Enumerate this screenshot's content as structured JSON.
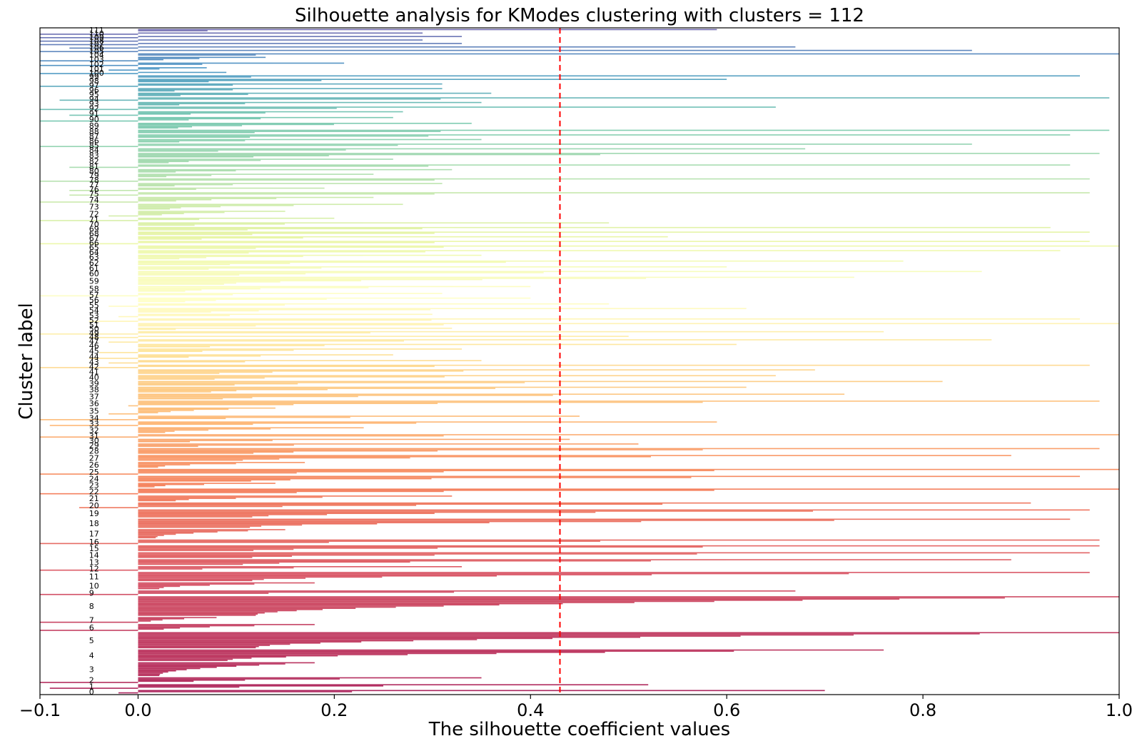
{
  "chart_data": {
    "type": "bar",
    "orientation": "horizontal",
    "title": "Silhouette analysis for KModes clustering with clusters = 112",
    "xlabel": "The silhouette coefficient values",
    "ylabel": "Cluster label",
    "xlim": [
      -0.1,
      1.0
    ],
    "xticks": [
      "−0.1",
      "0.0",
      "0.2",
      "0.4",
      "0.6",
      "0.8",
      "1.0"
    ],
    "yticks_shown": false,
    "grid": false,
    "legend": "none",
    "average_silhouette": 0.43,
    "average_line_color": "#ff0000",
    "colormap": "Spectral",
    "n_clusters": 112,
    "clusters": [
      {
        "label": "0",
        "size": 3,
        "max": 0.7,
        "min": -0.02
      },
      {
        "label": "1",
        "size": 4,
        "max": 0.52,
        "min": -0.09
      },
      {
        "label": "2",
        "size": 5,
        "max": 0.35,
        "min": -0.1
      },
      {
        "label": "3",
        "size": 12,
        "max": 0.18,
        "min": 0.0
      },
      {
        "label": "4",
        "size": 10,
        "max": 0.76,
        "min": 0.0
      },
      {
        "label": "5",
        "size": 14,
        "max": 1.0,
        "min": 0.0
      },
      {
        "label": "6",
        "size": 6,
        "max": 0.18,
        "min": -0.1
      },
      {
        "label": "7",
        "size": 5,
        "max": 0.08,
        "min": -0.1
      },
      {
        "label": "8",
        "size": 17,
        "max": 1.0,
        "min": 0.0
      },
      {
        "label": "9",
        "size": 4,
        "max": 0.67,
        "min": -0.1
      },
      {
        "label": "10",
        "size": 6,
        "max": 0.18,
        "min": 0.0
      },
      {
        "label": "11",
        "size": 8,
        "max": 0.97,
        "min": 0.0
      },
      {
        "label": "12",
        "size": 4,
        "max": 0.33,
        "min": -0.1
      },
      {
        "label": "13",
        "size": 5,
        "max": 0.89,
        "min": 0.0
      },
      {
        "label": "14",
        "size": 5,
        "max": 0.97,
        "min": 0.0
      },
      {
        "label": "15",
        "size": 5,
        "max": 0.98,
        "min": 0.0
      },
      {
        "label": "16",
        "size": 4,
        "max": 0.98,
        "min": -0.1
      },
      {
        "label": "17",
        "size": 8,
        "max": 0.15,
        "min": 0.0
      },
      {
        "label": "18",
        "size": 8,
        "max": 0.95,
        "min": 0.0
      },
      {
        "label": "19",
        "size": 7,
        "max": 0.97,
        "min": 0.0
      },
      {
        "label": "20",
        "size": 5,
        "max": 0.91,
        "min": -0.06
      },
      {
        "label": "21",
        "size": 5,
        "max": 0.32,
        "min": 0.0
      },
      {
        "label": "22",
        "size": 5,
        "max": 1.0,
        "min": -0.1
      },
      {
        "label": "23",
        "size": 4,
        "max": 0.14,
        "min": 0.0
      },
      {
        "label": "24",
        "size": 5,
        "max": 0.96,
        "min": 0.0
      },
      {
        "label": "25",
        "size": 5,
        "max": 1.0,
        "min": -0.1
      },
      {
        "label": "26",
        "size": 5,
        "max": 0.17,
        "min": 0.0
      },
      {
        "label": "27",
        "size": 5,
        "max": 0.89,
        "min": 0.0
      },
      {
        "label": "28",
        "size": 5,
        "max": 0.98,
        "min": 0.0
      },
      {
        "label": "29",
        "size": 3,
        "max": 0.51,
        "min": 0.0
      },
      {
        "label": "30",
        "size": 3,
        "max": 0.44,
        "min": 0.0
      },
      {
        "label": "31",
        "size": 3,
        "max": 1.0,
        "min": -0.1
      },
      {
        "label": "32",
        "size": 5,
        "max": 0.23,
        "min": 0.0
      },
      {
        "label": "33",
        "size": 4,
        "max": 0.59,
        "min": -0.09
      },
      {
        "label": "34",
        "size": 4,
        "max": 0.45,
        "min": -0.1
      },
      {
        "label": "35",
        "size": 6,
        "max": 0.14,
        "min": -0.03
      },
      {
        "label": "36",
        "size": 5,
        "max": 0.98,
        "min": -0.01
      },
      {
        "label": "37",
        "size": 5,
        "max": 0.72,
        "min": 0.0
      },
      {
        "label": "38",
        "size": 5,
        "max": 0.62,
        "min": 0.0
      },
      {
        "label": "39",
        "size": 4,
        "max": 0.82,
        "min": 0.0
      },
      {
        "label": "40",
        "size": 4,
        "max": 0.65,
        "min": 0.0
      },
      {
        "label": "41",
        "size": 4,
        "max": 0.69,
        "min": 0.0
      },
      {
        "label": "42",
        "size": 3,
        "max": 0.97,
        "min": -0.1
      },
      {
        "label": "43",
        "size": 3,
        "max": 0.35,
        "min": -0.03
      },
      {
        "label": "44",
        "size": 4,
        "max": 0.26,
        "min": -0.05
      },
      {
        "label": "45",
        "size": 4,
        "max": 0.33,
        "min": -0.04
      },
      {
        "label": "46",
        "size": 3,
        "max": 0.61,
        "min": 0.0
      },
      {
        "label": "47",
        "size": 3,
        "max": 0.87,
        "min": -0.03
      },
      {
        "label": "48",
        "size": 2,
        "max": 0.5,
        "min": -0.05
      },
      {
        "label": "49",
        "size": 3,
        "max": 0.76,
        "min": -0.1
      },
      {
        "label": "50",
        "size": 2,
        "max": 0.32,
        "min": 0.0
      },
      {
        "label": "51",
        "size": 3,
        "max": 1.0,
        "min": 0.0
      },
      {
        "label": "52",
        "size": 3,
        "max": 0.96,
        "min": -0.05
      },
      {
        "label": "53",
        "size": 3,
        "max": 0.3,
        "min": -0.02
      },
      {
        "label": "54",
        "size": 4,
        "max": 0.62,
        "min": 0.0
      },
      {
        "label": "55",
        "size": 3,
        "max": 0.48,
        "min": -0.03
      },
      {
        "label": "56",
        "size": 4,
        "max": 0.4,
        "min": 0.0
      },
      {
        "label": "57",
        "size": 3,
        "max": 0.31,
        "min": -0.1
      },
      {
        "label": "58",
        "size": 5,
        "max": 0.4,
        "min": 0.0
      },
      {
        "label": "59",
        "size": 7,
        "max": 0.73,
        "min": 0.0
      },
      {
        "label": "60",
        "size": 4,
        "max": 0.86,
        "min": 0.0
      },
      {
        "label": "61",
        "size": 3,
        "max": 0.6,
        "min": 0.0
      },
      {
        "label": "62",
        "size": 4,
        "max": 0.78,
        "min": 0.0
      },
      {
        "label": "63",
        "size": 4,
        "max": 0.35,
        "min": 0.0
      },
      {
        "label": "64",
        "size": 3,
        "max": 0.94,
        "min": 0.0
      },
      {
        "label": "65",
        "size": 3,
        "max": 1.0,
        "min": 0.0
      },
      {
        "label": "66",
        "size": 3,
        "max": 0.97,
        "min": -0.1
      },
      {
        "label": "67",
        "size": 3,
        "max": 0.54,
        "min": 0.0
      },
      {
        "label": "68",
        "size": 3,
        "max": 0.97,
        "min": 0.0
      },
      {
        "label": "69",
        "size": 3,
        "max": 0.93,
        "min": 0.0
      },
      {
        "label": "70",
        "size": 3,
        "max": 0.48,
        "min": 0.0
      },
      {
        "label": "71",
        "size": 3,
        "max": 0.2,
        "min": -0.1
      },
      {
        "label": "72",
        "size": 5,
        "max": 0.15,
        "min": -0.03
      },
      {
        "label": "73",
        "size": 5,
        "max": 0.27,
        "min": 0.0
      },
      {
        "label": "74",
        "size": 5,
        "max": 0.24,
        "min": -0.1
      },
      {
        "label": "75",
        "size": 3,
        "max": 0.97,
        "min": -0.07
      },
      {
        "label": "76",
        "size": 3,
        "max": 0.19,
        "min": -0.07
      },
      {
        "label": "77",
        "size": 3,
        "max": 0.31,
        "min": 0.0
      },
      {
        "label": "78",
        "size": 3,
        "max": 0.97,
        "min": -0.1
      },
      {
        "label": "79",
        "size": 3,
        "max": 0.24,
        "min": 0.0
      },
      {
        "label": "80",
        "size": 3,
        "max": 0.32,
        "min": 0.0
      },
      {
        "label": "81",
        "size": 3,
        "max": 0.95,
        "min": -0.07
      },
      {
        "label": "82",
        "size": 4,
        "max": 0.26,
        "min": 0.0
      },
      {
        "label": "83",
        "size": 4,
        "max": 0.98,
        "min": 0.0
      },
      {
        "label": "84",
        "size": 3,
        "max": 0.68,
        "min": 0.0
      },
      {
        "label": "85",
        "size": 3,
        "max": 0.85,
        "min": -0.1
      },
      {
        "label": "86",
        "size": 3,
        "max": 0.35,
        "min": 0.0
      },
      {
        "label": "87",
        "size": 3,
        "max": 0.95,
        "min": 0.0
      },
      {
        "label": "88",
        "size": 3,
        "max": 0.99,
        "min": 0.0
      },
      {
        "label": "89",
        "size": 5,
        "max": 0.34,
        "min": 0.0
      },
      {
        "label": "90",
        "size": 4,
        "max": 0.26,
        "min": -0.1
      },
      {
        "label": "91",
        "size": 4,
        "max": 0.27,
        "min": -0.07
      },
      {
        "label": "92",
        "size": 3,
        "max": 0.65,
        "min": -0.1
      },
      {
        "label": "93",
        "size": 3,
        "max": 0.35,
        "min": 0.0
      },
      {
        "label": "94",
        "size": 3,
        "max": 0.99,
        "min": -0.08
      },
      {
        "label": "95",
        "size": 3,
        "max": 0.36,
        "min": 0.0
      },
      {
        "label": "96",
        "size": 3,
        "max": 0.31,
        "min": 0.0
      },
      {
        "label": "97",
        "size": 3,
        "max": 0.31,
        "min": -0.1
      },
      {
        "label": "98",
        "size": 3,
        "max": 0.6,
        "min": 0.0
      },
      {
        "label": "99",
        "size": 2,
        "max": 0.96,
        "min": 0.0
      },
      {
        "label": "100",
        "size": 2,
        "max": 0.09,
        "min": -0.1
      },
      {
        "label": "101",
        "size": 3,
        "max": 0.07,
        "min": -0.03
      },
      {
        "label": "102",
        "size": 3,
        "max": 0.21,
        "min": -0.1
      },
      {
        "label": "103",
        "size": 4,
        "max": 0.13,
        "min": -0.1
      },
      {
        "label": "104",
        "size": 2,
        "max": 1.0,
        "min": 0.0
      },
      {
        "label": "105",
        "size": 2,
        "max": 0.85,
        "min": -0.1
      },
      {
        "label": "106",
        "size": 2,
        "max": 0.67,
        "min": -0.07
      },
      {
        "label": "107",
        "size": 2,
        "max": 0.33,
        "min": -0.1
      },
      {
        "label": "108",
        "size": 2,
        "max": 0.29,
        "min": -0.1
      },
      {
        "label": "109",
        "size": 2,
        "max": 0.33,
        "min": -0.1
      },
      {
        "label": "110",
        "size": 2,
        "max": 0.29,
        "min": -0.1
      },
      {
        "label": "111",
        "size": 2,
        "max": 0.59,
        "min": 0.0
      }
    ]
  }
}
